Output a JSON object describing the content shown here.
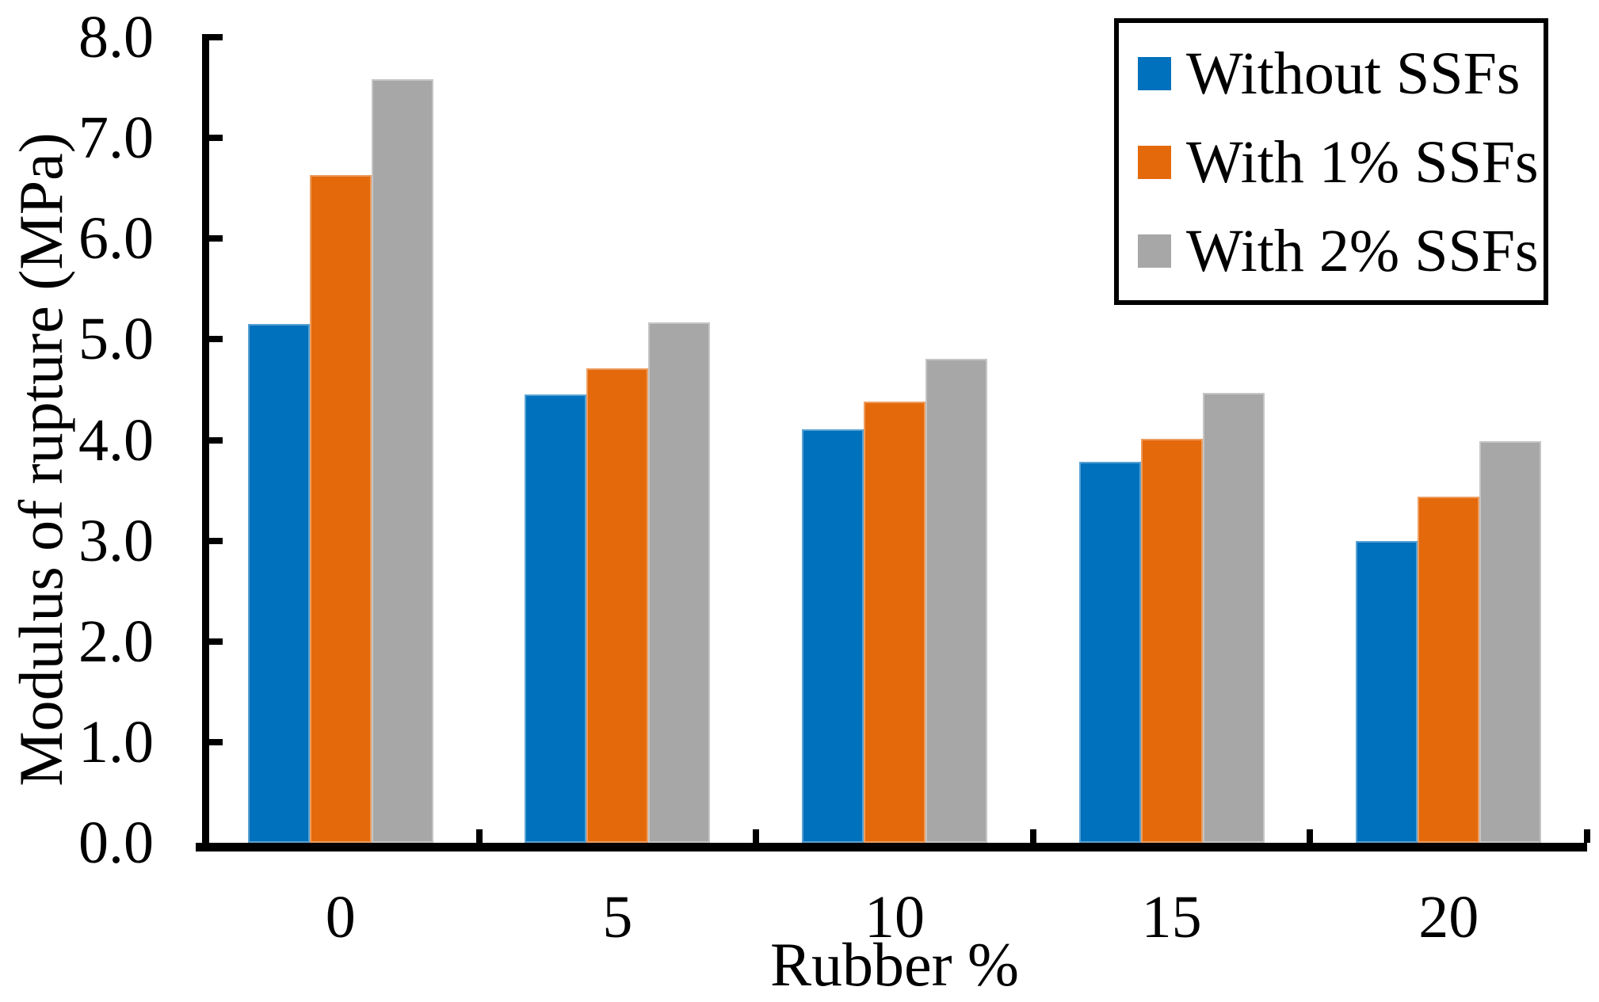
{
  "figure": {
    "background_color": "#ffffff",
    "text_color": "#000000",
    "axis_color": "#000000"
  },
  "chart_data": {
    "type": "bar",
    "categories": [
      "0",
      "5",
      "10",
      "15",
      "20"
    ],
    "series": [
      {
        "name": "Without SSFs",
        "color": "#0071BC",
        "values": [
          5.15,
          4.45,
          4.11,
          3.78,
          3.0
        ]
      },
      {
        "name": "With 1% SSFs",
        "color": "#E4690B",
        "values": [
          6.63,
          4.71,
          4.38,
          4.01,
          3.44
        ]
      },
      {
        "name": "With 2% SSFs",
        "color": "#A7A7A7",
        "values": [
          7.58,
          5.17,
          4.81,
          4.47,
          3.99
        ]
      }
    ],
    "title": "",
    "xlabel": "Rubber %",
    "ylabel": "Modulus of rupture (MPa)",
    "ylim": [
      0,
      8
    ],
    "ytick_step": 1.0,
    "ytick_labels": [
      "0.0",
      "1.0",
      "2.0",
      "3.0",
      "4.0",
      "5.0",
      "6.0",
      "7.0",
      "8.0"
    ],
    "grid": false,
    "legend_position": "top-right",
    "legend_border": "#000000",
    "tick_style": "inside"
  }
}
